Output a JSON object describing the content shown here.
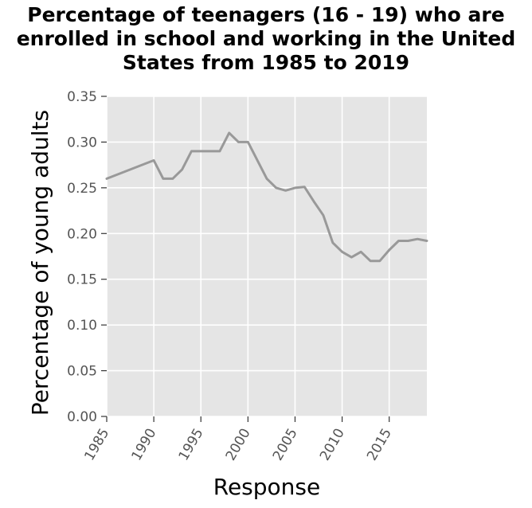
{
  "chart_data": {
    "type": "line",
    "title_lines": [
      "Percentage of teenagers (16 - 19) who are",
      "enrolled in school and working in the United",
      "States from 1985 to 2019"
    ],
    "xlabel": "Response",
    "ylabel": "Percentage of young adults",
    "xlim": [
      1985,
      2019
    ],
    "ylim": [
      0,
      0.35
    ],
    "x_ticks": [
      1985,
      1990,
      1995,
      2000,
      2005,
      2010,
      2015
    ],
    "x_tick_labels": [
      "1985",
      "1990",
      "1995",
      "2000",
      "2005",
      "2010",
      "2015"
    ],
    "y_ticks": [
      0,
      0.05,
      0.1,
      0.15,
      0.2,
      0.25,
      0.3,
      0.35
    ],
    "y_tick_labels": [
      "0.00",
      "0.05",
      "0.10",
      "0.15",
      "0.20",
      "0.25",
      "0.30",
      "0.35"
    ],
    "grid": true,
    "background": "#e5e5e5",
    "line_color": "#999999",
    "series": [
      {
        "x": [
          1985,
          1990,
          1991,
          1992,
          1993,
          1994,
          1995,
          1996,
          1997,
          1998,
          1999,
          2000,
          2001,
          2002,
          2003,
          2004,
          2005,
          2006,
          2007,
          2008,
          2009,
          2010,
          2011,
          2012,
          2013,
          2014,
          2015,
          2016,
          2017,
          2018,
          2019
        ],
        "values": [
          0.26,
          0.28,
          0.26,
          0.26,
          0.27,
          0.29,
          0.29,
          0.29,
          0.29,
          0.31,
          0.3,
          0.3,
          0.28,
          0.26,
          0.25,
          0.247,
          0.25,
          0.251,
          0.235,
          0.22,
          0.19,
          0.18,
          0.174,
          0.18,
          0.17,
          0.17,
          0.182,
          0.192,
          0.192,
          0.194,
          0.192
        ]
      }
    ]
  }
}
